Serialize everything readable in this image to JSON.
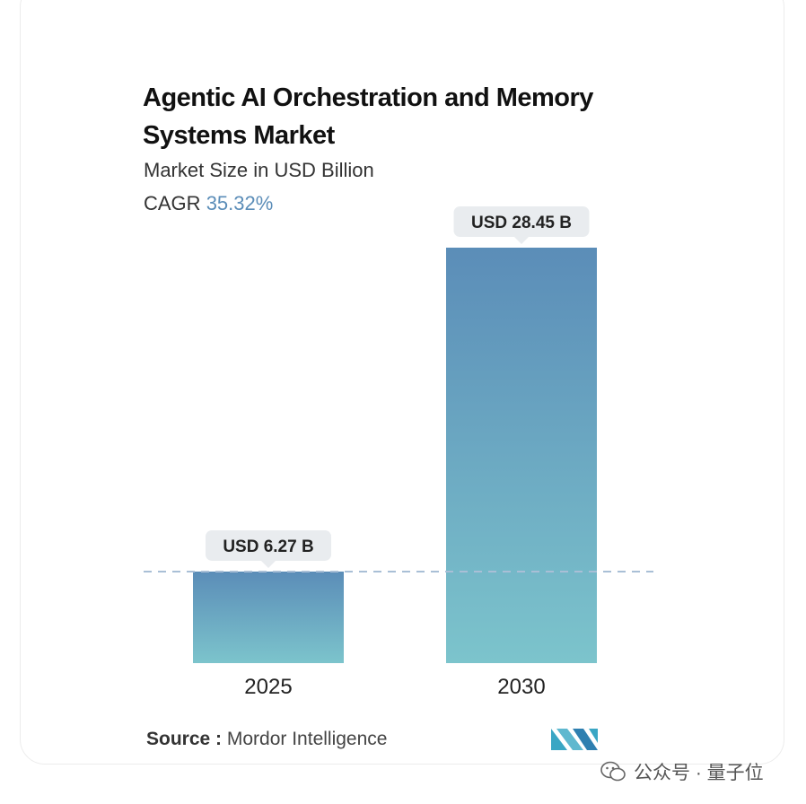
{
  "chart_data": {
    "type": "bar",
    "title": "Agentic AI Orchestration and Memory Systems Market",
    "subtitle": "Market Size in USD Billion",
    "cagr_label": "CAGR",
    "cagr_value": "35.32%",
    "categories": [
      "2025",
      "2030"
    ],
    "values": [
      6.27,
      28.45
    ],
    "data_labels": [
      "USD 6.27 B",
      "USD 28.45 B"
    ],
    "bar_color_top": "#5b8db8",
    "bar_color_bottom": "#7cc4cc",
    "reference_line": "dashed at 2025 value"
  },
  "source": {
    "label": "Source :",
    "value": "Mordor Intelligence"
  },
  "logo": {
    "icon": "mordor-intelligence-logo"
  },
  "watermark": {
    "icon": "wechat-icon",
    "text": "公众号 · 量子位"
  }
}
